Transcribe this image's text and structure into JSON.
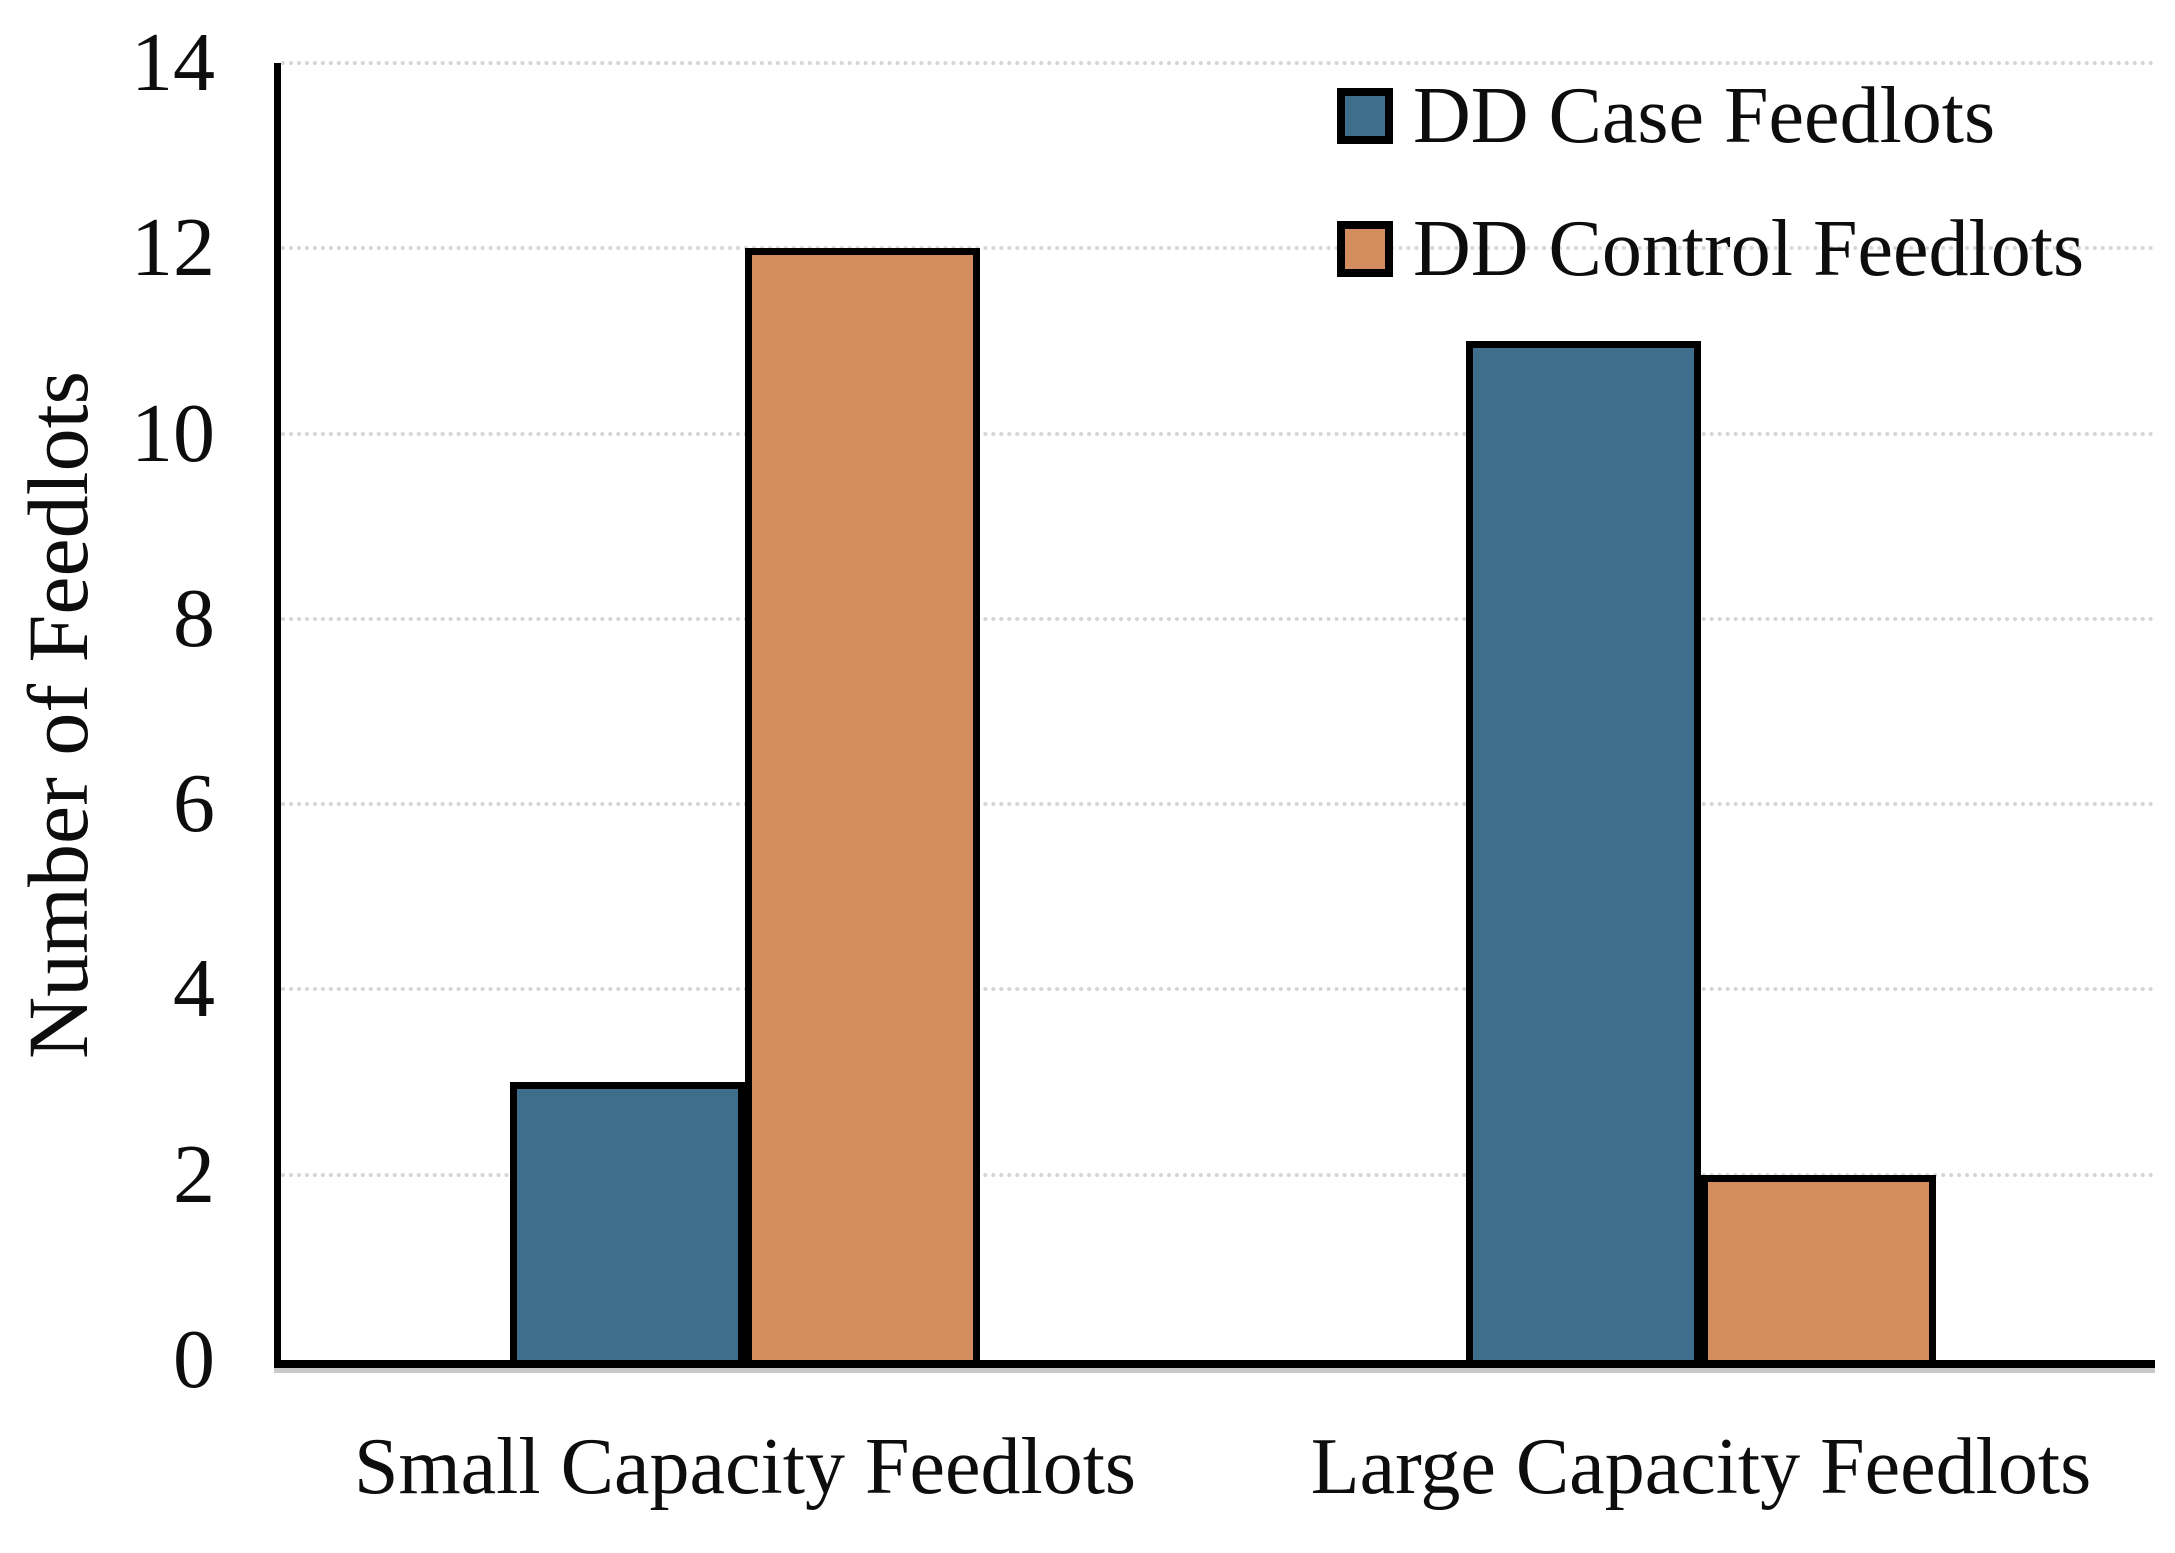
{
  "chart_data": {
    "type": "bar",
    "title": "",
    "categories": [
      "Small Capacity Feedlots",
      "Large Capacity Feedlots"
    ],
    "series": [
      {
        "name": "DD Case Feedlots",
        "color": "#3F6E8C",
        "values": [
          3,
          11
        ]
      },
      {
        "name": "DD Control Feedlots",
        "color": "#D28C5E",
        "values": [
          12,
          2
        ]
      }
    ],
    "xlabel": "",
    "ylabel": "Number of Feedlots",
    "ylim": [
      0,
      14
    ],
    "yticks": [
      0,
      2,
      4,
      6,
      8,
      10,
      12,
      14
    ],
    "grid": "horizontal-dotted",
    "gridline_color": "#d6d6d6",
    "axis_color": "#000000",
    "bar_border_color": "#000000",
    "legend_position": "top-right",
    "background": "#ffffff"
  }
}
